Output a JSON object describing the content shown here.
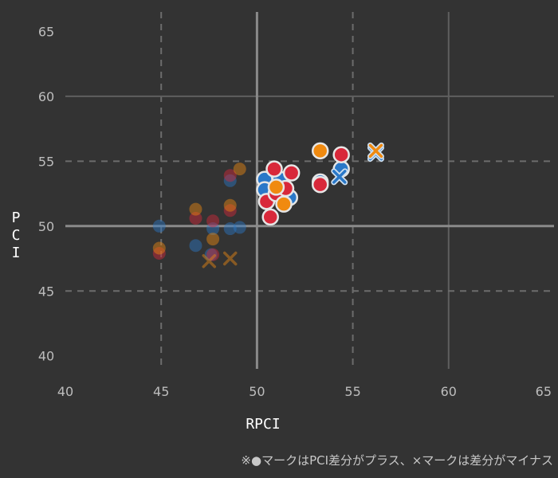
{
  "chart_data": {
    "type": "scatter",
    "title": "",
    "xlabel": "RPCI",
    "ylabel": "PCI",
    "xlim": [
      40,
      65
    ],
    "ylim": [
      40,
      65
    ],
    "x_ticks": [
      "40",
      "45",
      "50",
      "55",
      "60",
      "65"
    ],
    "y_ticks": [
      "40",
      "45",
      "50",
      "55",
      "60",
      "65"
    ],
    "reference_lines": {
      "x": 50,
      "y": 50
    },
    "grid": "dashed",
    "marker_legend": "※●マークはPCI差分がプラス、×マークは差分がマイナス",
    "colors": {
      "blue": "#2a78c8",
      "red": "#d8283a",
      "orange": "#f08a10"
    },
    "series": [
      {
        "name": "",
        "color": "blue",
        "faded": [
          {
            "x": 44.9,
            "y": 50.0,
            "m": "o"
          },
          {
            "x": 46.8,
            "y": 48.5,
            "m": "o"
          },
          {
            "x": 47.7,
            "y": 49.8,
            "m": "o"
          },
          {
            "x": 48.6,
            "y": 53.5,
            "m": "o"
          },
          {
            "x": 48.6,
            "y": 49.8,
            "m": "o"
          },
          {
            "x": 49.1,
            "y": 49.9,
            "m": "o"
          },
          {
            "x": 47.6,
            "y": 47.8,
            "m": "o"
          }
        ],
        "active": [
          {
            "x": 50.4,
            "y": 53.6,
            "m": "o"
          },
          {
            "x": 50.4,
            "y": 52.8,
            "m": "o"
          },
          {
            "x": 51.2,
            "y": 53.6,
            "m": "o"
          },
          {
            "x": 51.7,
            "y": 52.2,
            "m": "o"
          },
          {
            "x": 53.3,
            "y": 53.4,
            "m": "o"
          },
          {
            "x": 54.4,
            "y": 54.4,
            "m": "o"
          },
          {
            "x": 54.3,
            "y": 53.8,
            "m": "x"
          },
          {
            "x": 56.2,
            "y": 55.6,
            "m": "x"
          }
        ]
      },
      {
        "name": "",
        "color": "red",
        "faded": [
          {
            "x": 44.9,
            "y": 47.9,
            "m": "o"
          },
          {
            "x": 46.8,
            "y": 50.6,
            "m": "o"
          },
          {
            "x": 47.7,
            "y": 50.4,
            "m": "o"
          },
          {
            "x": 48.6,
            "y": 53.9,
            "m": "o"
          },
          {
            "x": 48.6,
            "y": 51.2,
            "m": "o"
          },
          {
            "x": 47.7,
            "y": 47.8,
            "m": "o"
          }
        ],
        "active": [
          {
            "x": 50.9,
            "y": 54.4,
            "m": "o"
          },
          {
            "x": 51.8,
            "y": 54.1,
            "m": "o"
          },
          {
            "x": 50.5,
            "y": 51.9,
            "m": "o"
          },
          {
            "x": 51.0,
            "y": 52.5,
            "m": "o"
          },
          {
            "x": 51.5,
            "y": 52.9,
            "m": "o"
          },
          {
            "x": 50.7,
            "y": 50.7,
            "m": "o"
          },
          {
            "x": 53.3,
            "y": 53.2,
            "m": "o"
          },
          {
            "x": 54.4,
            "y": 55.5,
            "m": "o"
          }
        ]
      },
      {
        "name": "",
        "color": "orange",
        "faded": [
          {
            "x": 44.9,
            "y": 48.3,
            "m": "o"
          },
          {
            "x": 46.8,
            "y": 51.3,
            "m": "o"
          },
          {
            "x": 47.7,
            "y": 49.0,
            "m": "o"
          },
          {
            "x": 48.6,
            "y": 51.6,
            "m": "o"
          },
          {
            "x": 49.1,
            "y": 54.4,
            "m": "o"
          },
          {
            "x": 47.5,
            "y": 47.3,
            "m": "x"
          },
          {
            "x": 48.6,
            "y": 47.5,
            "m": "x"
          }
        ],
        "active": [
          {
            "x": 51.4,
            "y": 51.7,
            "m": "o"
          },
          {
            "x": 53.3,
            "y": 55.8,
            "m": "o"
          },
          {
            "x": 51.0,
            "y": 53.0,
            "m": "o"
          },
          {
            "x": 56.2,
            "y": 55.8,
            "m": "x"
          }
        ]
      }
    ]
  }
}
